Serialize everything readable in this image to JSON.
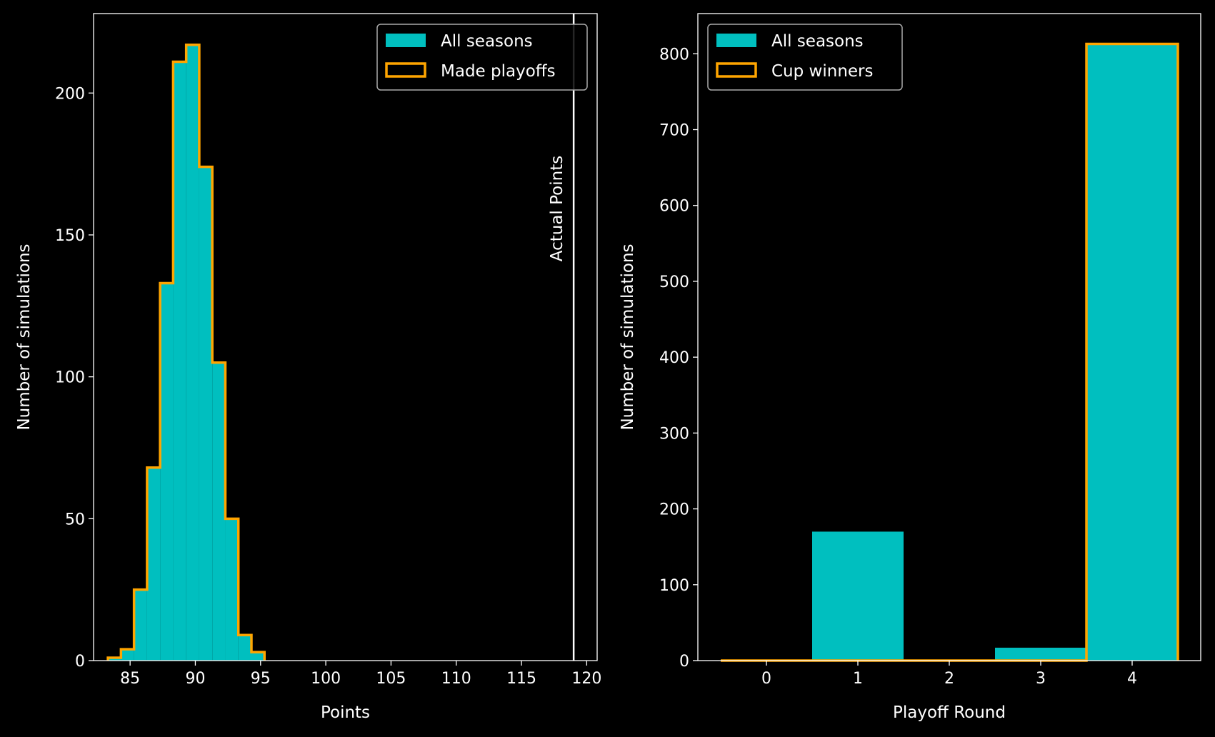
{
  "colors": {
    "background": "#000000",
    "bar_fill": "#00bfbf",
    "outline": "#ffa500",
    "axes": "#ffffff",
    "vline": "#ffffff",
    "legend_border": "#aaaaaa"
  },
  "chart_data": [
    {
      "type": "bar",
      "histtype": "histogram",
      "xlabel": "Points",
      "ylabel": "Number of simulations",
      "xlim": [
        82.2,
        120.8
      ],
      "ylim": [
        0,
        228
      ],
      "xticks": [
        85,
        90,
        95,
        100,
        105,
        110,
        115,
        120
      ],
      "yticks": [
        0,
        50,
        100,
        150,
        200
      ],
      "grid": false,
      "legend_position": "top-right",
      "bin_edges": [
        83.3,
        84.3,
        85.3,
        86.3,
        87.3,
        88.3,
        89.3,
        90.3,
        91.3,
        92.3,
        93.3,
        94.3,
        95.3
      ],
      "series": [
        {
          "name": "All seasons",
          "style": "filled",
          "values": [
            1,
            4,
            25,
            68,
            133,
            211,
            217,
            174,
            105,
            50,
            9,
            3
          ]
        },
        {
          "name": "Made playoffs",
          "style": "step-outline",
          "values": [
            1,
            4,
            25,
            68,
            133,
            211,
            217,
            174,
            105,
            50,
            9,
            3
          ]
        }
      ],
      "annotations": [
        {
          "text": "Actual Points",
          "x": 119,
          "type": "vertical-line"
        }
      ]
    },
    {
      "type": "bar",
      "histtype": "histogram",
      "xlabel": "Playoff Round",
      "ylabel": "Number of simulations",
      "xlim": [
        -0.75,
        4.75
      ],
      "ylim": [
        0,
        853
      ],
      "xticks": [
        0,
        1,
        2,
        3,
        4
      ],
      "yticks": [
        0,
        100,
        200,
        300,
        400,
        500,
        600,
        700,
        800
      ],
      "grid": false,
      "legend_position": "top-left",
      "categories": [
        0,
        1,
        2,
        3,
        4
      ],
      "series": [
        {
          "name": "All seasons",
          "style": "filled",
          "values": [
            0,
            170,
            0,
            17,
            813
          ]
        },
        {
          "name": "Cup winners",
          "style": "step-outline",
          "values": [
            0,
            0,
            0,
            0,
            813
          ]
        }
      ]
    }
  ]
}
